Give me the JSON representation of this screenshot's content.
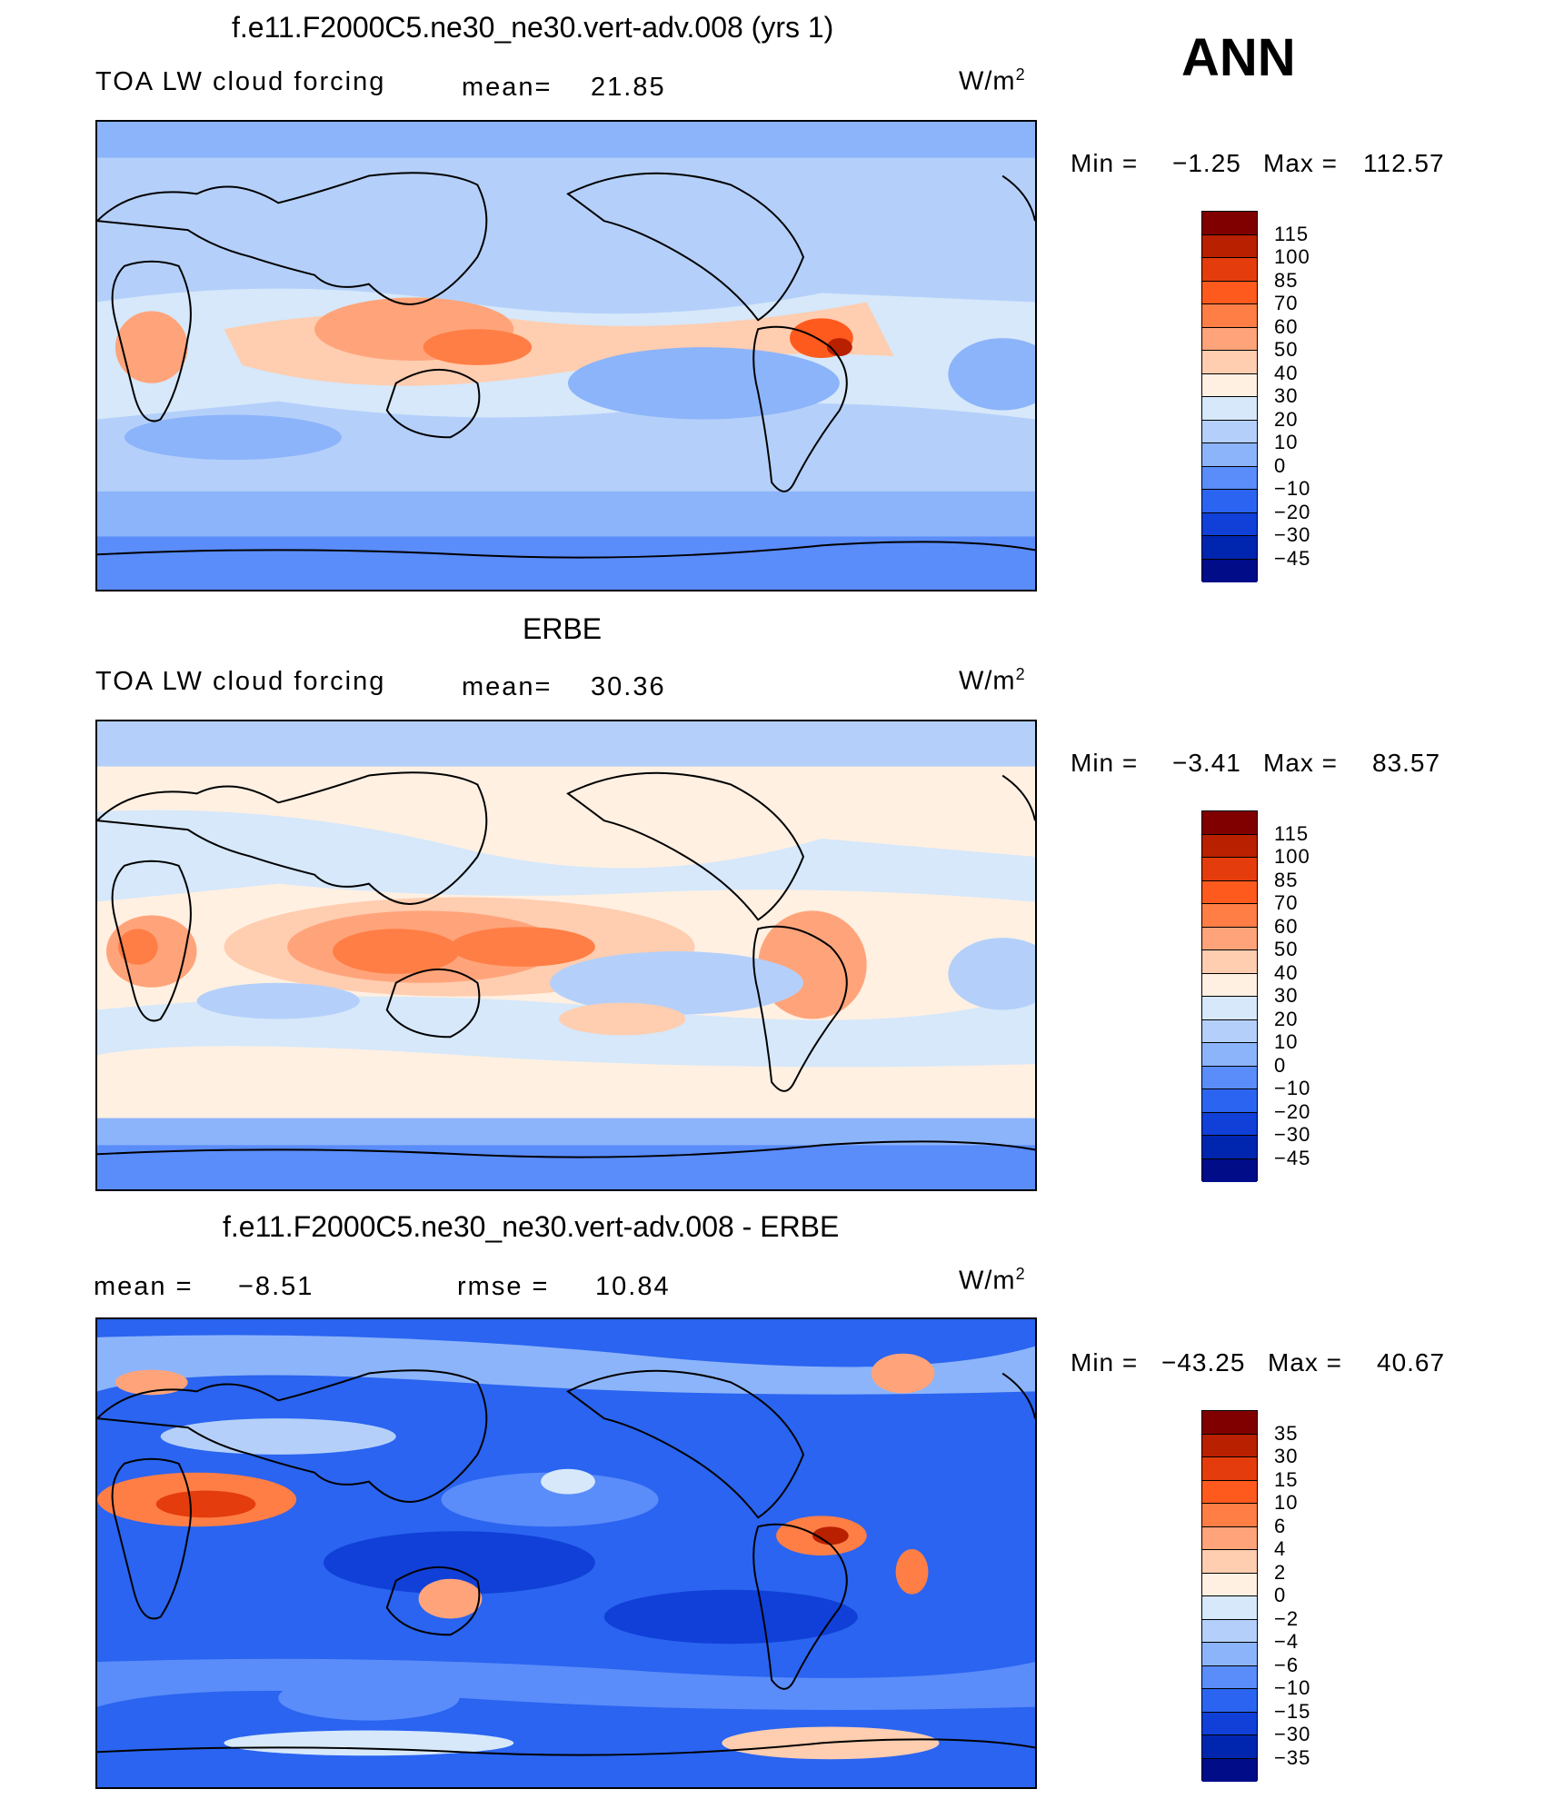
{
  "season": "ANN",
  "panels": [
    {
      "title": "f.e11.F2000C5.ne30_ne30.vert-adv.008 (yrs 1)",
      "left_label": "TOA LW cloud forcing",
      "center_label": "mean=",
      "center_value": "21.85",
      "units_base": "W/m",
      "units_exp": "2",
      "min_label": "Min =",
      "min_value": "−1.25",
      "max_label": "Max =",
      "max_value": "112.57",
      "colorbar": {
        "colors": [
          "#800000",
          "#b82000",
          "#e43c0c",
          "#ff5a1e",
          "#ff7e46",
          "#ffa47a",
          "#ffcdb0",
          "#fff0e2",
          "#d6e8fa",
          "#b4d0fa",
          "#8cb4fa",
          "#5a8cfa",
          "#2a64f0",
          "#1040d8",
          "#0026b0",
          "#000c88"
        ],
        "labels": [
          "115",
          "100",
          "85",
          "70",
          "60",
          "50",
          "40",
          "30",
          "20",
          "10",
          "0",
          "−10",
          "−20",
          "−30",
          "−45"
        ]
      }
    },
    {
      "title": "ERBE",
      "left_label": "TOA LW cloud forcing",
      "center_label": "mean=",
      "center_value": "30.36",
      "units_base": "W/m",
      "units_exp": "2",
      "min_label": "Min =",
      "min_value": "−3.41",
      "max_label": "Max =",
      "max_value": "83.57",
      "colorbar": {
        "colors": [
          "#800000",
          "#b82000",
          "#e43c0c",
          "#ff5a1e",
          "#ff7e46",
          "#ffa47a",
          "#ffcdb0",
          "#fff0e2",
          "#d6e8fa",
          "#b4d0fa",
          "#8cb4fa",
          "#5a8cfa",
          "#2a64f0",
          "#1040d8",
          "#0026b0",
          "#000c88"
        ],
        "labels": [
          "115",
          "100",
          "85",
          "70",
          "60",
          "50",
          "40",
          "30",
          "20",
          "10",
          "0",
          "−10",
          "−20",
          "−30",
          "−45"
        ]
      }
    },
    {
      "title": "f.e11.F2000C5.ne30_ne30.vert-adv.008 - ERBE",
      "left_label": "mean =",
      "left_value": "−8.51",
      "center_label": "rmse =",
      "center_value": "10.84",
      "units_base": "W/m",
      "units_exp": "2",
      "min_label": "Min =",
      "min_value": "−43.25",
      "max_label": "Max =",
      "max_value": "40.67",
      "colorbar": {
        "colors": [
          "#800000",
          "#b82000",
          "#e43c0c",
          "#ff5a1e",
          "#ff7e46",
          "#ffa47a",
          "#ffcdb0",
          "#fff0e2",
          "#d6e8fa",
          "#b4d0fa",
          "#8cb4fa",
          "#5a8cfa",
          "#2a64f0",
          "#1040d8",
          "#0026b0",
          "#000c88"
        ],
        "labels": [
          "35",
          "30",
          "15",
          "10",
          "6",
          "4",
          "2",
          "0",
          "−2",
          "−4",
          "−6",
          "−10",
          "−15",
          "−30",
          "−35"
        ]
      }
    }
  ]
}
